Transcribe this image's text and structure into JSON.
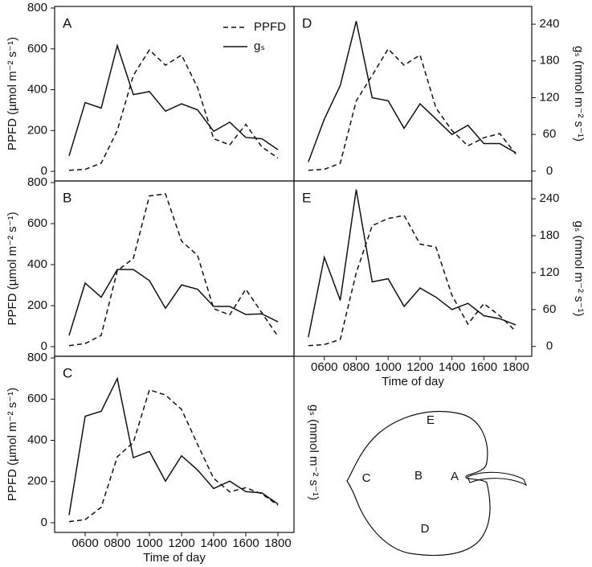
{
  "chart_data": [
    {
      "type": "line",
      "title": "A",
      "legend": "upper right",
      "x": [
        500,
        600,
        700,
        800,
        900,
        1000,
        1100,
        1200,
        1300,
        1400,
        1500,
        1600,
        1700,
        1800
      ],
      "xlim": [
        410,
        1900
      ],
      "ylim": [
        -47,
        808
      ],
      "y2lim": [
        -16,
        269
      ],
      "ylabel": "PPFD (µmol m⁻² s⁻¹)",
      "yticks": [
        0,
        200,
        400,
        600,
        800
      ],
      "series": [
        {
          "name": "PPFD",
          "color": "#111111",
          "dashed": true,
          "values": [
            5,
            10,
            40,
            200,
            470,
            595,
            520,
            570,
            410,
            160,
            130,
            230,
            120,
            65
          ]
        },
        {
          "name": "gₛ",
          "color": "#111111",
          "dashed": false,
          "axis": "y2",
          "values": [
            25,
            112,
            103,
            205,
            125,
            130,
            98,
            110,
            100,
            65,
            80,
            55,
            53,
            35
          ]
        }
      ]
    },
    {
      "type": "line",
      "title": "B",
      "x": [
        500,
        600,
        700,
        800,
        900,
        1000,
        1100,
        1200,
        1300,
        1400,
        1500,
        1600,
        1700,
        1800
      ],
      "xlim": [
        410,
        1900
      ],
      "ylim": [
        -47,
        808
      ],
      "y2lim": [
        -16,
        269
      ],
      "ylabel": "PPFD (µmol m⁻² s⁻¹)",
      "yticks": [
        0,
        200,
        400,
        600,
        800
      ],
      "series": [
        {
          "name": "PPFD",
          "color": "#111111",
          "dashed": true,
          "values": [
            5,
            15,
            55,
            370,
            430,
            735,
            745,
            515,
            445,
            185,
            155,
            280,
            165,
            50
          ]
        },
        {
          "name": "gₛ",
          "color": "#111111",
          "dashed": false,
          "axis": "y2",
          "values": [
            18,
            103,
            80,
            125,
            125,
            107,
            62,
            100,
            93,
            65,
            65,
            52,
            53,
            40
          ]
        }
      ]
    },
    {
      "type": "line",
      "title": "C",
      "x": [
        500,
        600,
        700,
        800,
        900,
        1000,
        1100,
        1200,
        1300,
        1400,
        1500,
        1600,
        1700,
        1800
      ],
      "xlim": [
        410,
        1900
      ],
      "ylim": [
        -47,
        808
      ],
      "y2lim": [
        -16,
        269
      ],
      "ylabel": "PPFD (µmol m⁻² s⁻¹)",
      "yticks": [
        0,
        200,
        400,
        600,
        800
      ],
      "y2label": "gₛ (mmol m⁻² s⁻¹)",
      "xlabel": "Time of day",
      "xticks": [
        {
          "value": 600,
          "label": "0600"
        },
        {
          "value": 800,
          "label": "0800"
        },
        {
          "value": 1000,
          "label": "1000"
        },
        {
          "value": 1200,
          "label": "1200"
        },
        {
          "value": 1400,
          "label": "1400"
        },
        {
          "value": 1600,
          "label": "1600"
        },
        {
          "value": 1800,
          "label": "1800"
        }
      ],
      "series": [
        {
          "name": "PPFD",
          "color": "#111111",
          "dashed": true,
          "values": [
            5,
            15,
            75,
            320,
            390,
            645,
            620,
            550,
            380,
            215,
            150,
            170,
            140,
            85
          ]
        },
        {
          "name": "gₛ",
          "color": "#111111",
          "dashed": false,
          "axis": "y2",
          "values": [
            12,
            172,
            180,
            233,
            105,
            115,
            67,
            108,
            85,
            55,
            67,
            50,
            48,
            30
          ]
        }
      ]
    },
    {
      "type": "line",
      "title": "D",
      "x": [
        500,
        600,
        700,
        800,
        900,
        1000,
        1100,
        1200,
        1300,
        1400,
        1500,
        1600,
        1700,
        1800
      ],
      "xlim": [
        410,
        1900
      ],
      "ylim": [
        -47,
        808
      ],
      "y2lim": [
        -16,
        269
      ],
      "y2label": "gₛ (mmol m⁻² s⁻¹)",
      "y2ticks": [
        0,
        60,
        120,
        180,
        240
      ],
      "series": [
        {
          "name": "PPFD",
          "color": "#111111",
          "dashed": true,
          "values": [
            5,
            10,
            40,
            345,
            470,
            600,
            520,
            570,
            310,
            200,
            125,
            165,
            185,
            85
          ]
        },
        {
          "name": "gₛ",
          "color": "#111111",
          "dashed": false,
          "axis": "y2",
          "values": [
            15,
            85,
            140,
            245,
            120,
            115,
            70,
            110,
            85,
            60,
            75,
            45,
            45,
            30
          ]
        }
      ]
    },
    {
      "type": "line",
      "title": "E",
      "x": [
        500,
        600,
        700,
        800,
        900,
        1000,
        1100,
        1200,
        1300,
        1400,
        1500,
        1600,
        1700,
        1800
      ],
      "xlim": [
        410,
        1900
      ],
      "ylim": [
        -47,
        808
      ],
      "y2lim": [
        -16,
        269
      ],
      "y2label": "gₛ (mmol m⁻² s⁻¹)",
      "y2ticks": [
        0,
        60,
        120,
        180,
        240
      ],
      "xlabel": "Time of day",
      "xticks": [
        {
          "value": 600,
          "label": "0600"
        },
        {
          "value": 800,
          "label": "0800"
        },
        {
          "value": 1000,
          "label": "1000"
        },
        {
          "value": 1200,
          "label": "1200"
        },
        {
          "value": 1400,
          "label": "1400"
        },
        {
          "value": 1600,
          "label": "1600"
        },
        {
          "value": 1800,
          "label": "1800"
        }
      ],
      "series": [
        {
          "name": "PPFD",
          "color": "#111111",
          "dashed": true,
          "values": [
            5,
            10,
            35,
            360,
            590,
            625,
            640,
            500,
            485,
            250,
            110,
            210,
            150,
            75
          ]
        },
        {
          "name": "gₛ",
          "color": "#111111",
          "dashed": false,
          "axis": "y2",
          "values": [
            15,
            145,
            75,
            255,
            105,
            110,
            65,
            95,
            80,
            60,
            70,
            50,
            45,
            35
          ]
        }
      ]
    }
  ],
  "leaf_diagram": {
    "labels": [
      "E",
      "C",
      "B",
      "A",
      "D"
    ]
  }
}
